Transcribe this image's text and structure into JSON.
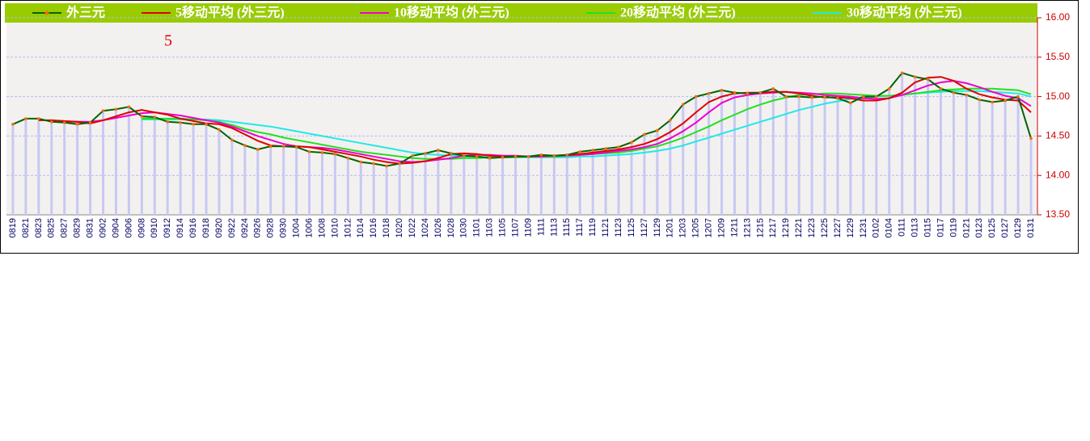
{
  "chart_data": {
    "type": "line",
    "annotation": "5",
    "categories": [
      "0819",
      "0821",
      "0823",
      "0825",
      "0827",
      "0829",
      "0831",
      "0902",
      "0904",
      "0906",
      "0908",
      "0910",
      "0912",
      "0914",
      "0916",
      "0918",
      "0920",
      "0922",
      "0924",
      "0926",
      "0928",
      "0930",
      "1004",
      "1006",
      "1008",
      "1010",
      "1012",
      "1014",
      "1016",
      "1018",
      "1020",
      "1022",
      "1024",
      "1026",
      "1028",
      "1030",
      "1101",
      "1103",
      "1105",
      "1107",
      "1109",
      "1111",
      "1113",
      "1115",
      "1117",
      "1119",
      "1121",
      "1123",
      "1125",
      "1127",
      "1129",
      "1201",
      "1203",
      "1205",
      "1207",
      "1209",
      "1211",
      "1213",
      "1215",
      "1217",
      "1219",
      "1221",
      "1223",
      "1225",
      "1227",
      "1229",
      "1231",
      "0102",
      "0104",
      "0111",
      "0113",
      "0115",
      "0117",
      "0119",
      "0121",
      "0123",
      "0125",
      "0127",
      "0129",
      "0131"
    ],
    "series": [
      {
        "name": "外三元",
        "color": "#006400",
        "marker_color": "#ff6a00",
        "bars": true,
        "values": [
          14.65,
          14.72,
          14.72,
          14.68,
          14.67,
          14.65,
          14.67,
          14.82,
          14.84,
          14.87,
          14.75,
          14.74,
          14.68,
          14.67,
          14.65,
          14.65,
          14.58,
          14.45,
          14.38,
          14.33,
          14.37,
          14.37,
          14.36,
          14.3,
          14.29,
          14.27,
          14.22,
          14.17,
          14.15,
          14.12,
          14.15,
          14.25,
          14.28,
          14.32,
          14.28,
          14.25,
          14.24,
          14.22,
          14.23,
          14.24,
          14.24,
          14.26,
          14.25,
          14.26,
          14.3,
          14.32,
          14.34,
          14.36,
          14.42,
          14.52,
          14.57,
          14.7,
          14.9,
          15.0,
          15.04,
          15.08,
          15.05,
          15.04,
          15.05,
          15.1,
          15.0,
          15.0,
          14.99,
          15.0,
          14.98,
          14.92,
          15.0,
          15.0,
          15.1,
          15.3,
          15.25,
          15.22,
          15.1,
          15.05,
          15.02,
          14.96,
          14.93,
          14.95,
          15.0,
          14.47
        ]
      },
      {
        "name": "5移动平均 (外三元)",
        "color": "#dd0000",
        "values": [
          null,
          null,
          14.7,
          14.7,
          14.69,
          14.68,
          14.66,
          14.7,
          14.75,
          14.8,
          14.83,
          14.8,
          14.77,
          14.72,
          14.69,
          14.66,
          14.65,
          14.6,
          14.52,
          14.44,
          14.38,
          14.37,
          14.37,
          14.36,
          14.33,
          14.3,
          14.27,
          14.24,
          14.2,
          14.17,
          14.15,
          14.16,
          14.18,
          14.22,
          14.27,
          14.28,
          14.27,
          14.25,
          14.24,
          14.24,
          14.24,
          14.25,
          14.25,
          14.26,
          14.27,
          14.29,
          14.31,
          14.33,
          14.36,
          14.4,
          14.46,
          14.55,
          14.66,
          14.8,
          14.93,
          15.0,
          15.04,
          15.05,
          15.05,
          15.06,
          15.06,
          15.04,
          15.01,
          14.99,
          14.99,
          14.98,
          14.95,
          14.95,
          14.98,
          15.05,
          15.18,
          15.24,
          15.25,
          15.2,
          15.1,
          15.03,
          14.99,
          14.96,
          14.95,
          14.8
        ]
      },
      {
        "name": "10移动平均 (外三元)",
        "color": "#ee00cc",
        "values": [
          null,
          null,
          null,
          null,
          14.68,
          14.68,
          14.68,
          14.7,
          14.73,
          14.76,
          14.79,
          14.8,
          14.78,
          14.76,
          14.73,
          14.7,
          14.67,
          14.62,
          14.56,
          14.5,
          14.45,
          14.4,
          14.37,
          14.36,
          14.35,
          14.33,
          14.3,
          14.27,
          14.24,
          14.21,
          14.18,
          14.17,
          14.18,
          14.2,
          14.22,
          14.25,
          14.26,
          14.26,
          14.25,
          14.25,
          14.24,
          14.24,
          14.25,
          14.25,
          14.26,
          14.27,
          14.29,
          14.31,
          14.33,
          14.36,
          14.4,
          14.47,
          14.56,
          14.67,
          14.8,
          14.92,
          14.99,
          15.02,
          15.04,
          15.05,
          15.06,
          15.05,
          15.04,
          15.02,
          15.01,
          15.0,
          14.98,
          14.97,
          14.98,
          15.02,
          15.08,
          15.14,
          15.18,
          15.2,
          15.17,
          15.12,
          15.06,
          15.01,
          14.98,
          14.88
        ]
      },
      {
        "name": "20移动平均 (外三元)",
        "color": "#22e022",
        "values": [
          null,
          null,
          null,
          null,
          null,
          null,
          null,
          null,
          null,
          null,
          14.72,
          14.72,
          14.72,
          14.72,
          14.71,
          14.7,
          14.68,
          14.64,
          14.59,
          14.55,
          14.52,
          14.48,
          14.45,
          14.42,
          14.39,
          14.36,
          14.33,
          14.3,
          14.28,
          14.26,
          14.24,
          14.22,
          14.21,
          14.21,
          14.21,
          14.22,
          14.22,
          14.23,
          14.23,
          14.23,
          14.24,
          14.24,
          14.24,
          14.25,
          14.26,
          14.27,
          14.28,
          14.29,
          14.31,
          14.34,
          14.37,
          14.42,
          14.48,
          14.55,
          14.62,
          14.7,
          14.77,
          14.84,
          14.9,
          14.95,
          14.99,
          15.02,
          15.03,
          15.04,
          15.04,
          15.03,
          15.02,
          15.01,
          15.01,
          15.02,
          15.04,
          15.06,
          15.08,
          15.09,
          15.1,
          15.1,
          15.1,
          15.09,
          15.08,
          15.03
        ]
      },
      {
        "name": "30移动平均 (外三元)",
        "color": "#22e8e8",
        "values": [
          null,
          null,
          null,
          null,
          null,
          null,
          null,
          null,
          null,
          null,
          14.71,
          14.71,
          14.71,
          14.71,
          14.71,
          14.71,
          14.7,
          14.68,
          14.66,
          14.64,
          14.62,
          14.59,
          14.56,
          14.53,
          14.5,
          14.47,
          14.44,
          14.41,
          14.38,
          14.35,
          14.32,
          14.29,
          14.27,
          14.26,
          14.25,
          14.24,
          14.24,
          14.23,
          14.23,
          14.23,
          14.23,
          14.23,
          14.23,
          14.23,
          14.24,
          14.24,
          14.25,
          14.26,
          14.27,
          14.29,
          14.31,
          14.34,
          14.38,
          14.43,
          14.48,
          14.53,
          14.58,
          14.63,
          14.68,
          14.73,
          14.78,
          14.83,
          14.87,
          14.91,
          14.94,
          14.97,
          14.98,
          15.0,
          15.01,
          15.02,
          15.04,
          15.05,
          15.06,
          15.07,
          15.07,
          15.07,
          15.06,
          15.05,
          15.04,
          15.0
        ]
      }
    ],
    "ylim": [
      13.5,
      16
    ],
    "yticks": [
      {
        "value": 13.5,
        "label": "13.50"
      },
      {
        "value": 14,
        "label": "14.00"
      },
      {
        "value": 14.5,
        "label": "14.50"
      },
      {
        "value": 15,
        "label": "15.00"
      },
      {
        "value": 15.5,
        "label": "15.50"
      },
      {
        "value": 16,
        "label": "16.00"
      }
    ],
    "grid": true,
    "legend": "top",
    "bar_color": "#c8c8f4"
  }
}
